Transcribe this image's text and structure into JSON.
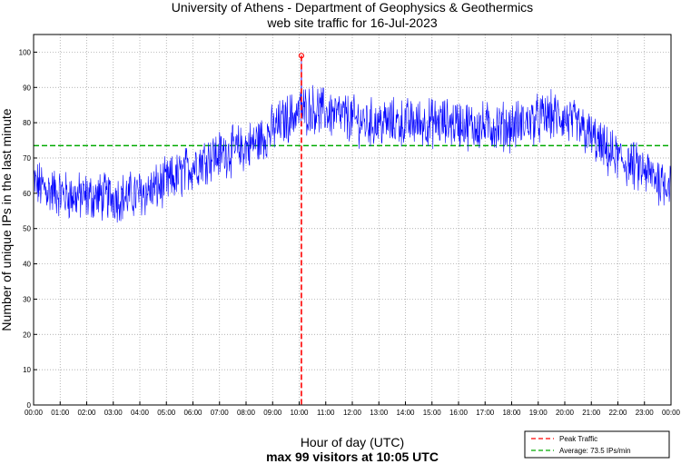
{
  "chart_data": {
    "type": "line",
    "title": "University of Athens - Department of Geophysics & Geothermics",
    "subtitle": "web site traffic for 16-Jul-2023",
    "xlabel": "Hour of day (UTC)",
    "footer": "max 99 visitors at 10:05 UTC",
    "ylabel": "Number of unique IPs in the last minute",
    "xlim": [
      0,
      24
    ],
    "ylim": [
      0,
      105
    ],
    "grid": true,
    "x_ticks": [
      "00:00",
      "01:00",
      "02:00",
      "03:00",
      "04:00",
      "05:00",
      "06:00",
      "07:00",
      "08:00",
      "09:00",
      "10:00",
      "11:00",
      "12:00",
      "13:00",
      "14:00",
      "15:00",
      "16:00",
      "17:00",
      "18:00",
      "19:00",
      "20:00",
      "21:00",
      "22:00",
      "23:00",
      "00:00"
    ],
    "y_ticks": [
      "0",
      "10",
      "20",
      "30",
      "40",
      "50",
      "60",
      "70",
      "80",
      "90",
      "100"
    ],
    "series": [
      {
        "name": "traffic",
        "color": "#0000ff",
        "x": [
          0,
          0.5,
          1,
          1.5,
          2,
          2.5,
          3,
          3.5,
          4,
          4.5,
          5,
          5.5,
          6,
          6.5,
          7,
          7.5,
          8,
          8.5,
          9,
          9.5,
          10,
          10.5,
          11,
          11.5,
          12,
          12.5,
          13,
          13.5,
          14,
          14.5,
          15,
          15.5,
          16,
          16.5,
          17,
          17.5,
          18,
          18.5,
          19,
          19.5,
          20,
          20.5,
          21,
          21.5,
          22,
          22.5,
          23,
          23.5,
          24
        ],
        "y": [
          63,
          61,
          60,
          59,
          59,
          59,
          59,
          59,
          60,
          61,
          63,
          65,
          68,
          70,
          71,
          72,
          73,
          75,
          78,
          81,
          83,
          84,
          83,
          82,
          81,
          80,
          80,
          80,
          80,
          80,
          80,
          80,
          80,
          79,
          79,
          79,
          79,
          80,
          81,
          82,
          81,
          79,
          76,
          72,
          70,
          68,
          66,
          64,
          63
        ]
      }
    ],
    "peak": {
      "label": "Peak Traffic",
      "x": 10.083,
      "y": 99,
      "color": "#ff0000"
    },
    "average": {
      "label": "Average: 73.5 IPs/min",
      "y": 73.5,
      "color": "#00aa00"
    },
    "legend_position": "bottom-right"
  }
}
